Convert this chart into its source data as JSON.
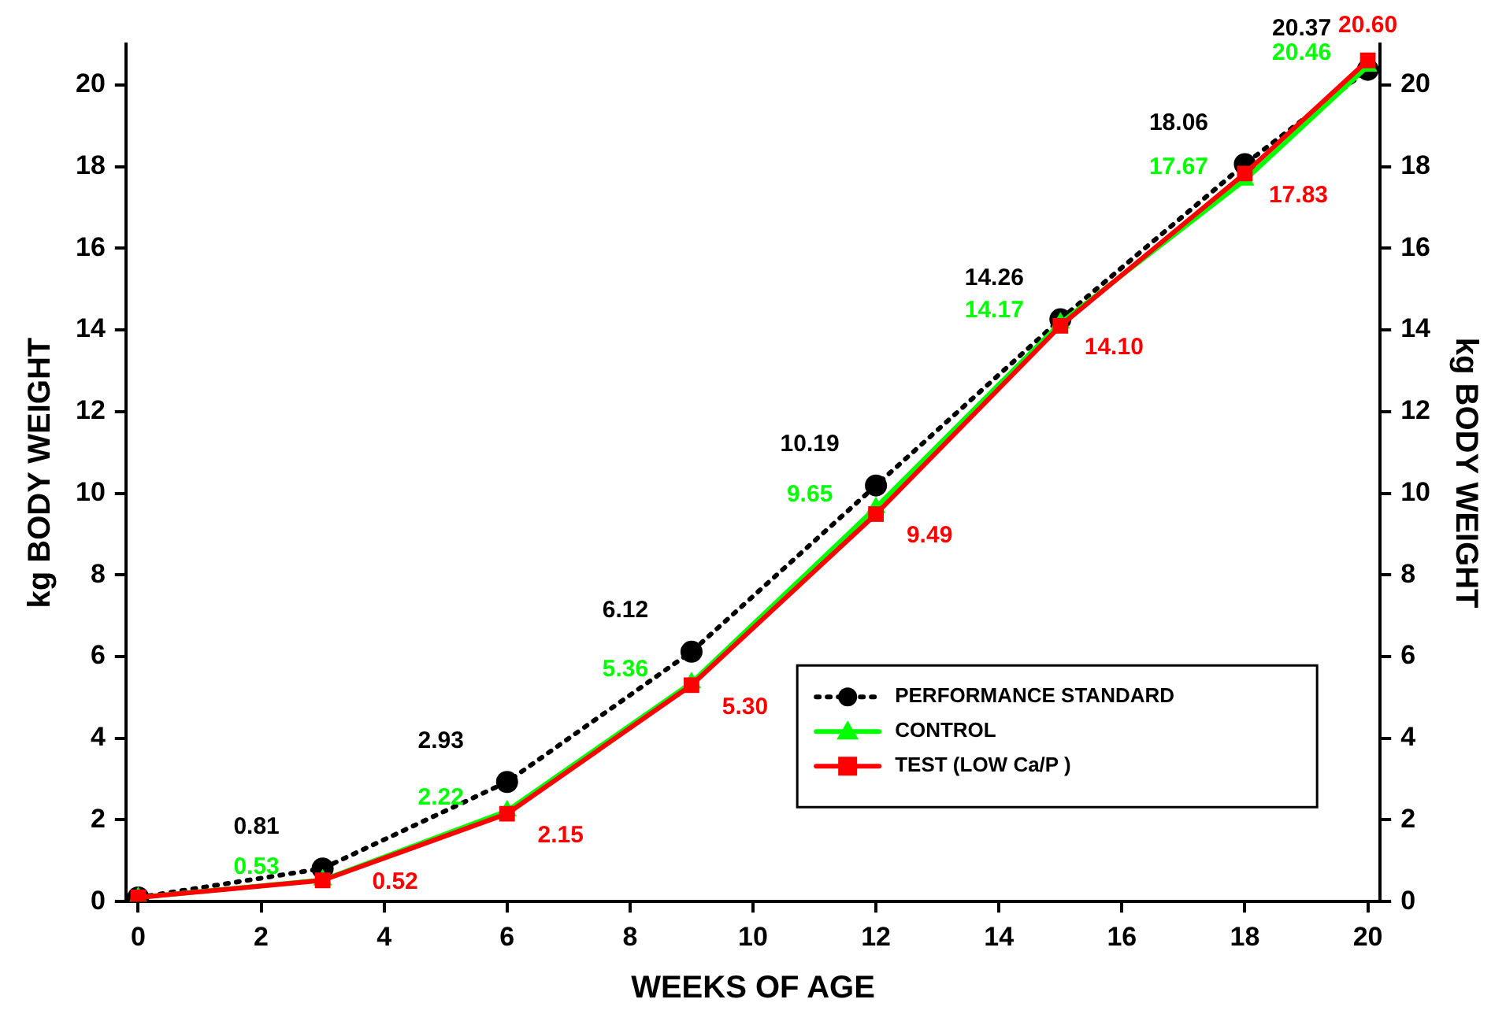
{
  "chart_data": {
    "type": "line",
    "xlabel": "WEEKS OF AGE",
    "ylabel": "kg BODY WEIGHT",
    "y2label": "kg BODY WEIGHT",
    "x": [
      0,
      3,
      6,
      9,
      12,
      15,
      18,
      20
    ],
    "series": [
      {
        "name": "PERFORMANCE STANDARD",
        "color": "#000000",
        "marker": "circle",
        "line_style": "dotted",
        "values": [
          0.1,
          0.81,
          2.93,
          6.12,
          10.19,
          14.26,
          18.06,
          20.37
        ],
        "value_labels": [
          null,
          "0.81",
          "2.93",
          "6.12",
          "10.19",
          "14.26",
          "18.06",
          "20.37"
        ]
      },
      {
        "name": "CONTROL",
        "color": "#00ff00",
        "marker": "triangle",
        "line_style": "solid",
        "values": [
          0.1,
          0.53,
          2.22,
          5.36,
          9.65,
          14.17,
          17.67,
          20.46
        ],
        "value_labels": [
          null,
          "0.53",
          "2.22",
          "5.36",
          "9.65",
          "14.17",
          "17.67",
          "20.46"
        ]
      },
      {
        "name": "TEST (LOW Ca/P )",
        "color": "#ff0000",
        "marker": "square",
        "line_style": "solid",
        "values": [
          0.1,
          0.52,
          2.15,
          5.3,
          9.49,
          14.1,
          17.83,
          20.6
        ],
        "value_labels": [
          null,
          "0.52",
          "2.15",
          "5.30",
          "9.49",
          "14.10",
          "17.83",
          "20.60"
        ]
      }
    ],
    "xlim": [
      -0.2,
      20.2
    ],
    "xticks": [
      0,
      2,
      4,
      6,
      8,
      10,
      12,
      14,
      16,
      18,
      20
    ],
    "ylim": [
      0,
      21
    ],
    "yticks": [
      0,
      2,
      4,
      6,
      8,
      10,
      12,
      14,
      16,
      18,
      20
    ],
    "y2lim": [
      0,
      21
    ],
    "y2ticks": [
      0,
      2,
      4,
      6,
      8,
      10,
      12,
      14,
      16,
      18,
      20
    ],
    "grid": false,
    "legend": "bottom right"
  }
}
